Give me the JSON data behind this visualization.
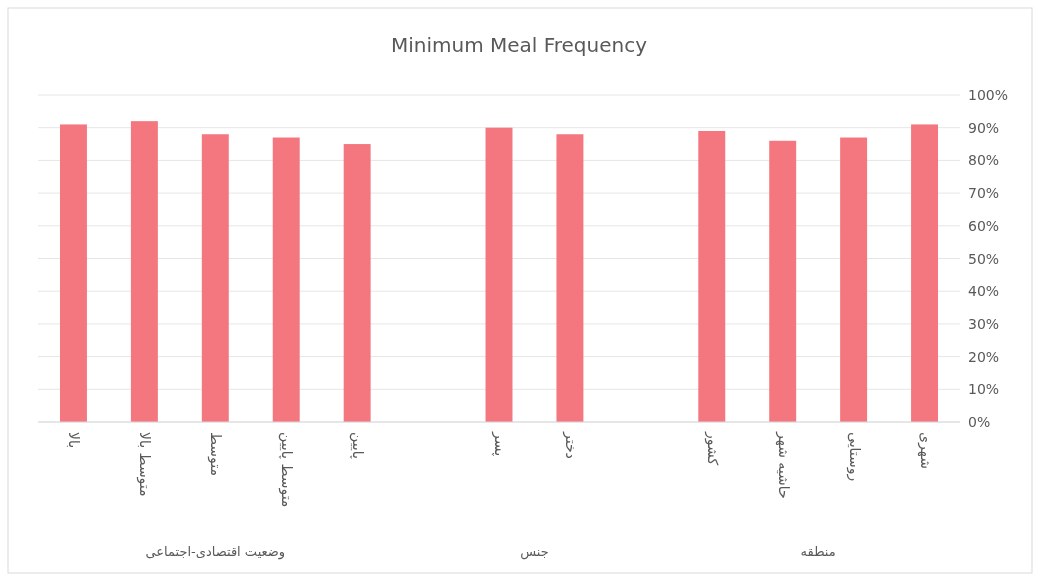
{
  "chart_data": {
    "type": "bar",
    "title": "Minimum Meal Frequency",
    "categories": [
      "بالا",
      "متوسط بالا",
      "متوسط",
      "متوسط پایین",
      "پایین",
      null,
      "پسر",
      "دختر",
      null,
      "کشور",
      "حاشیه شهر",
      "روستایی",
      "شهری"
    ],
    "values": [
      91,
      92,
      88,
      87,
      85,
      null,
      90,
      88,
      null,
      89,
      86,
      87,
      91
    ],
    "color": "#f4777f",
    "ylim": [
      0,
      100
    ],
    "yticks": [
      {
        "value": 0,
        "label": "0%"
      },
      {
        "value": 10,
        "label": "10%"
      },
      {
        "value": 20,
        "label": "20%"
      },
      {
        "value": 30,
        "label": "30%"
      },
      {
        "value": 40,
        "label": "40%"
      },
      {
        "value": 50,
        "label": "50%"
      },
      {
        "value": 60,
        "label": "60%"
      },
      {
        "value": 70,
        "label": "70%"
      },
      {
        "value": 80,
        "label": "80%"
      },
      {
        "value": 90,
        "label": "90%"
      },
      {
        "value": 100,
        "label": "100%"
      }
    ],
    "grid": "y",
    "annotations": [
      "وضعیت اقتصادی-اجتماعی",
      "جنس",
      "منطقه"
    ]
  }
}
